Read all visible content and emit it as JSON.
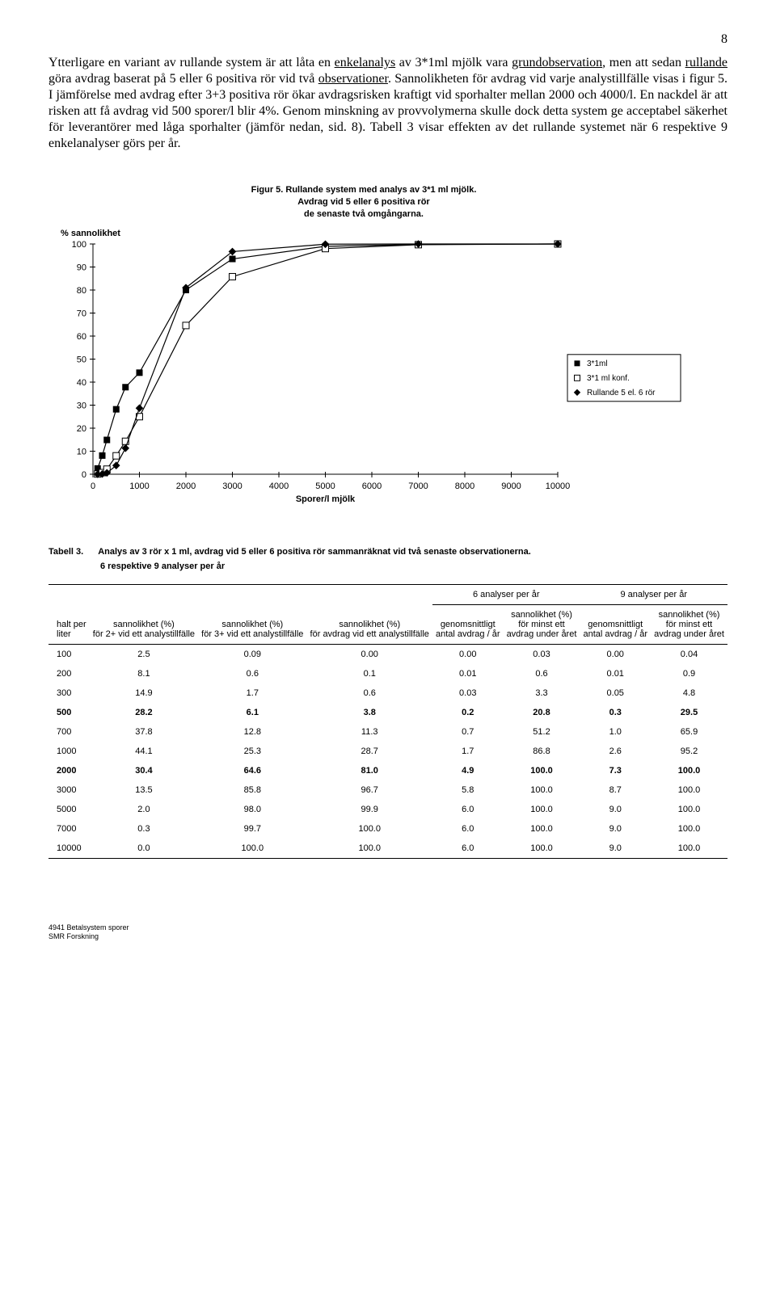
{
  "page_number": "8",
  "paragraph_html": "Ytterligare en variant av rullande system är att låta en <span class='underline'>enkelanalys</span> av 3*1ml mjölk vara <span class='underline'>grundobservation</span>, men att sedan <span class='underline'>rullande</span> göra avdrag baserat på 5 eller 6 positiva rör vid två <span class='underline'>observationer</span>. Sannolikheten för avdrag vid varje analystillfälle visas i figur 5. I jämförelse med avdrag efter 3+3 positiva rör ökar avdragsrisken kraftigt vid sporhalter mellan 2000 och 4000/l. En nackdel är att risken att få avdrag vid 500 sporer/l blir 4%. Genom minskning av provvolymerna skulle dock detta system ge acceptabel säkerhet för leverantörer med låga sporhalter (jämför nedan, sid. 8). Tabell 3 visar effekten av det rullande systemet när 6 respektive 9 enkelanalyser görs per år.",
  "chart": {
    "type": "line-scatter",
    "title_line1": "Figur 5. Rullande system med analys av 3*1 ml mjölk.",
    "title_line2": "Avdrag vid 5 eller 6 positiva rör",
    "title_line3": "de senaste två omgångarna.",
    "y_label": "% sannolikhet",
    "x_label": "Sporer/l mjölk",
    "title_fontsize": 11,
    "label_fontsize": 11,
    "xlim": [
      0,
      10000
    ],
    "ylim": [
      0,
      100
    ],
    "xtick_step": 1000,
    "ytick_step": 10,
    "background_color": "#ffffff",
    "axis_color": "#000000",
    "tick_color": "#000000",
    "line_width": 1.2,
    "marker_size": 4,
    "legend": {
      "position": "right-middle",
      "border_color": "#000000",
      "items": [
        {
          "label": "3*1ml",
          "marker": "square-filled",
          "color": "#000000"
        },
        {
          "label": "3*1 ml konf.",
          "marker": "square-open",
          "color": "#000000"
        },
        {
          "label": "Rullande 5 el. 6 rör",
          "marker": "diamond-filled",
          "color": "#000000"
        }
      ]
    },
    "series": [
      {
        "name": "3*1ml",
        "marker": "square-filled",
        "color": "#000000",
        "x": [
          100,
          200,
          300,
          500,
          700,
          1000,
          2000,
          3000,
          5000,
          7000,
          10000
        ],
        "y": [
          2.5,
          8.1,
          14.9,
          28.2,
          37.8,
          44.1,
          80.0,
          93.5,
          99.0,
          99.8,
          100.0
        ]
      },
      {
        "name": "3*1 ml konf.",
        "marker": "square-open",
        "color": "#000000",
        "x": [
          100,
          200,
          300,
          500,
          700,
          1000,
          2000,
          3000,
          5000,
          7000,
          10000
        ],
        "y": [
          0.1,
          0.7,
          2.2,
          8.0,
          14.3,
          25.0,
          64.6,
          85.8,
          98.0,
          99.7,
          100.0
        ]
      },
      {
        "name": "Rullande 5 el. 6 rör",
        "marker": "diamond-filled",
        "color": "#000000",
        "x": [
          100,
          200,
          300,
          500,
          700,
          1000,
          2000,
          3000,
          5000,
          7000,
          10000
        ],
        "y": [
          0.0,
          0.1,
          0.6,
          3.8,
          11.3,
          28.7,
          81.0,
          96.7,
          99.9,
          100.0,
          100.0
        ]
      }
    ]
  },
  "table": {
    "caption_label": "Tabell 3.",
    "caption_text": "Analys av 3 rör x 1 ml, avdrag vid 5 eller 6 positiva rör sammanräknat vid två senaste observationerna.",
    "subcaption": "6 respektive 9 analyser per år",
    "group_label_6": "6 analyser per år",
    "group_label_9": "9 analyser per år",
    "columns": [
      "halt per liter",
      "sannolikhet (%) för 2+ vid ett analystillfälle",
      "sannolikhet (%) för 3+ vid ett analystillfälle",
      "sannolikhet (%) för avdrag vid ett analystillfälle",
      "genomsnittligt antal avdrag / år",
      "sannolikhet (%) för minst ett avdrag under året",
      "genomsnittligt antal avdrag / år",
      "sannolikhet (%) för minst ett avdrag under året"
    ],
    "bold_rows": [
      3,
      6
    ],
    "rows": [
      [
        "100",
        "2.5",
        "0.09",
        "0.00",
        "0.00",
        "0.03",
        "0.00",
        "0.04"
      ],
      [
        "200",
        "8.1",
        "0.6",
        "0.1",
        "0.01",
        "0.6",
        "0.01",
        "0.9"
      ],
      [
        "300",
        "14.9",
        "1.7",
        "0.6",
        "0.03",
        "3.3",
        "0.05",
        "4.8"
      ],
      [
        "500",
        "28.2",
        "6.1",
        "3.8",
        "0.2",
        "20.8",
        "0.3",
        "29.5"
      ],
      [
        "700",
        "37.8",
        "12.8",
        "11.3",
        "0.7",
        "51.2",
        "1.0",
        "65.9"
      ],
      [
        "1000",
        "44.1",
        "25.3",
        "28.7",
        "1.7",
        "86.8",
        "2.6",
        "95.2"
      ],
      [
        "2000",
        "30.4",
        "64.6",
        "81.0",
        "4.9",
        "100.0",
        "7.3",
        "100.0"
      ],
      [
        "3000",
        "13.5",
        "85.8",
        "96.7",
        "5.8",
        "100.0",
        "8.7",
        "100.0"
      ],
      [
        "5000",
        "2.0",
        "98.0",
        "99.9",
        "6.0",
        "100.0",
        "9.0",
        "100.0"
      ],
      [
        "7000",
        "0.3",
        "99.7",
        "100.0",
        "6.0",
        "100.0",
        "9.0",
        "100.0"
      ],
      [
        "10000",
        "0.0",
        "100.0",
        "100.0",
        "6.0",
        "100.0",
        "9.0",
        "100.0"
      ]
    ]
  },
  "footer_line1": "4941 Betalsystem sporer",
  "footer_line2": "SMR Forskning"
}
